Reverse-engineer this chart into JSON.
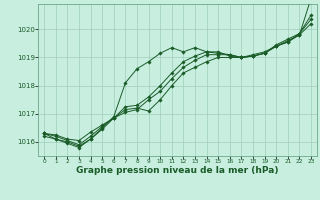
{
  "bg_color": "#c8eee0",
  "grid_color": "#9ecfb8",
  "line_color": "#1a5c28",
  "marker_color": "#1a5c28",
  "xlabel": "Graphe pression niveau de la mer (hPa)",
  "xlabel_fontsize": 6.5,
  "xlim": [
    -0.5,
    23.5
  ],
  "ylim": [
    1015.5,
    1020.9
  ],
  "yticks": [
    1016,
    1017,
    1018,
    1019,
    1020
  ],
  "xticks": [
    0,
    1,
    2,
    3,
    4,
    5,
    6,
    7,
    8,
    9,
    10,
    11,
    12,
    13,
    14,
    15,
    16,
    17,
    18,
    19,
    20,
    21,
    22,
    23
  ],
  "series": [
    [
      1016.3,
      1016.25,
      1016.1,
      1016.05,
      1016.35,
      1016.6,
      1016.85,
      1017.15,
      1017.2,
      1017.1,
      1017.5,
      1018.0,
      1018.45,
      1018.65,
      1018.85,
      1019.0,
      1019.0,
      1019.0,
      1019.1,
      1019.2,
      1019.4,
      1019.6,
      1019.8,
      1020.2
    ],
    [
      1016.3,
      1016.1,
      1015.95,
      1015.8,
      1016.1,
      1016.5,
      1016.9,
      1018.1,
      1018.6,
      1018.85,
      1019.15,
      1019.35,
      1019.2,
      1019.35,
      1019.2,
      1019.2,
      1019.05,
      1019.0,
      1019.05,
      1019.15,
      1019.4,
      1019.55,
      1019.8,
      1021.1
    ],
    [
      1016.2,
      1016.1,
      1016.0,
      1015.85,
      1016.1,
      1016.45,
      1016.85,
      1017.05,
      1017.15,
      1017.5,
      1017.8,
      1018.25,
      1018.65,
      1018.9,
      1019.1,
      1019.1,
      1019.1,
      1019.0,
      1019.05,
      1019.15,
      1019.45,
      1019.65,
      1019.85,
      1020.5
    ],
    [
      1016.3,
      1016.2,
      1016.05,
      1015.9,
      1016.2,
      1016.55,
      1016.85,
      1017.25,
      1017.3,
      1017.6,
      1018.0,
      1018.45,
      1018.85,
      1019.05,
      1019.2,
      1019.15,
      1019.1,
      1019.0,
      1019.05,
      1019.15,
      1019.4,
      1019.55,
      1019.85,
      1020.35
    ]
  ]
}
